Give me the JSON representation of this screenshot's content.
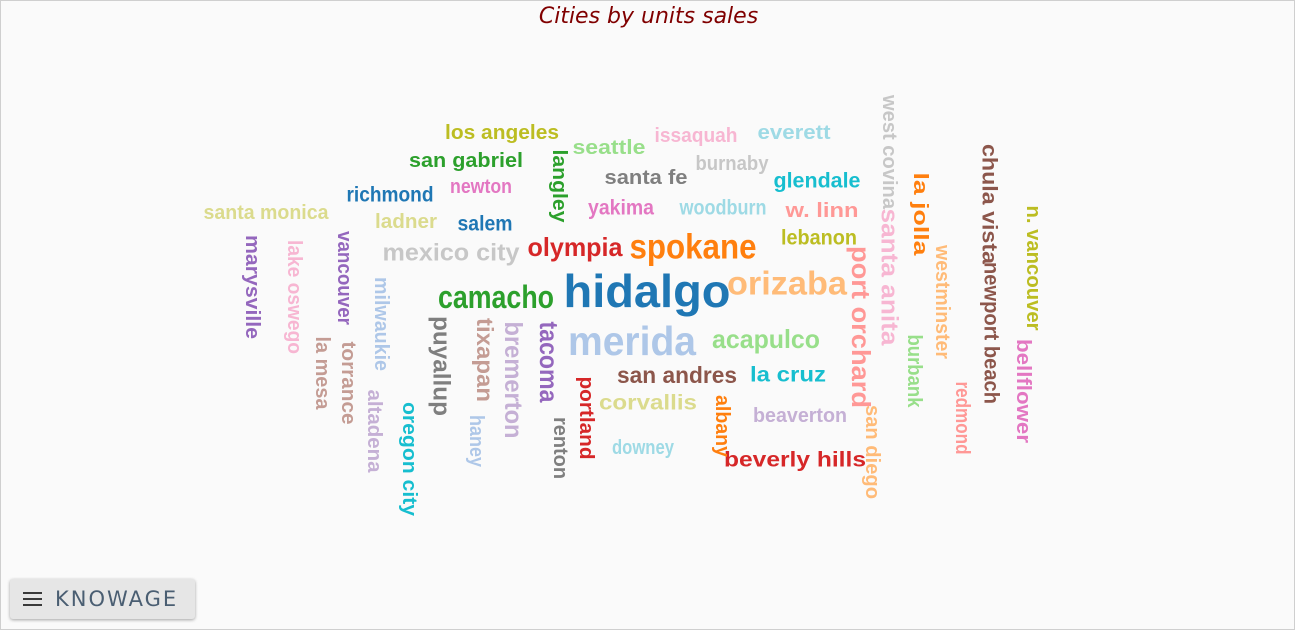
{
  "chart_data": {
    "type": "wordcloud",
    "title": "Cities by units sales",
    "words": [
      {
        "text": "hidalgo",
        "color": "#1f77b4",
        "rotate": false,
        "weight": 1.0
      },
      {
        "text": "merida",
        "color": "#aec7e8",
        "rotate": false,
        "weight": 0.9
      },
      {
        "text": "spokane",
        "color": "#ff7f0e",
        "rotate": false,
        "weight": 0.76
      },
      {
        "text": "orizaba",
        "color": "#ffbb78",
        "rotate": false,
        "weight": 0.72
      },
      {
        "text": "camacho",
        "color": "#2ca02c",
        "rotate": false,
        "weight": 0.7
      },
      {
        "text": "port orchard",
        "color": "#ff9896",
        "rotate": true,
        "weight": 0.58
      },
      {
        "text": "acapulco",
        "color": "#98df8a",
        "rotate": false,
        "weight": 0.58
      },
      {
        "text": "tacoma",
        "color": "#9467bd",
        "rotate": true,
        "weight": 0.58
      },
      {
        "text": "olympia",
        "color": "#d62728",
        "rotate": false,
        "weight": 0.58
      },
      {
        "text": "bremerton",
        "color": "#c5b0d5",
        "rotate": true,
        "weight": 0.56
      },
      {
        "text": "mexico city",
        "color": "#c7c7c7",
        "rotate": false,
        "weight": 0.54
      },
      {
        "text": "santa anita",
        "color": "#f7b6d2",
        "rotate": true,
        "weight": 0.54
      },
      {
        "text": "puyallup",
        "color": "#7f7f7f",
        "rotate": true,
        "weight": 0.53
      },
      {
        "text": "tixapan",
        "color": "#c49c94",
        "rotate": true,
        "weight": 0.52
      },
      {
        "text": "san andres",
        "color": "#8c564b",
        "rotate": false,
        "weight": 0.52
      },
      {
        "text": "la cruz",
        "color": "#17becf",
        "rotate": false,
        "weight": 0.5
      },
      {
        "text": "corvallis",
        "color": "#dbdb8d",
        "rotate": false,
        "weight": 0.5
      },
      {
        "text": "lebanon",
        "color": "#bcbd22",
        "rotate": false,
        "weight": 0.5
      },
      {
        "text": "yakima",
        "color": "#e377c2",
        "rotate": false,
        "weight": 0.5
      },
      {
        "text": "woodburn",
        "color": "#9edae5",
        "rotate": false,
        "weight": 0.5
      },
      {
        "text": "salem",
        "color": "#1f77b4",
        "rotate": false,
        "weight": 0.5
      },
      {
        "text": "richmond",
        "color": "#1f77b4",
        "rotate": false,
        "weight": 0.48
      },
      {
        "text": "glendale",
        "color": "#17becf",
        "rotate": false,
        "weight": 0.47
      },
      {
        "text": "beverly hills",
        "color": "#d62728",
        "rotate": false,
        "weight": 0.47
      },
      {
        "text": "newport beach",
        "color": "#8c564b",
        "rotate": true,
        "weight": 0.47
      },
      {
        "text": "chula vista",
        "color": "#8c564b",
        "rotate": true,
        "weight": 0.47
      },
      {
        "text": "vancouver",
        "color": "#9467bd",
        "rotate": true,
        "weight": 0.46
      },
      {
        "text": "marysville",
        "color": "#9467bd",
        "rotate": true,
        "weight": 0.46
      },
      {
        "text": "lake oswego",
        "color": "#f7b6d2",
        "rotate": true,
        "weight": 0.46
      },
      {
        "text": "milwaukie",
        "color": "#aec7e8",
        "rotate": true,
        "weight": 0.46
      },
      {
        "text": "torrance",
        "color": "#c49c94",
        "rotate": true,
        "weight": 0.46
      },
      {
        "text": "la mesa",
        "color": "#c49c94",
        "rotate": true,
        "weight": 0.46
      },
      {
        "text": "altadena",
        "color": "#c5b0d5",
        "rotate": true,
        "weight": 0.46
      },
      {
        "text": "oregon city",
        "color": "#17becf",
        "rotate": true,
        "weight": 0.46
      },
      {
        "text": "haney",
        "color": "#aec7e8",
        "rotate": true,
        "weight": 0.46
      },
      {
        "text": "renton",
        "color": "#7f7f7f",
        "rotate": true,
        "weight": 0.46
      },
      {
        "text": "portland",
        "color": "#d62728",
        "rotate": true,
        "weight": 0.46
      },
      {
        "text": "albany",
        "color": "#ff7f0e",
        "rotate": true,
        "weight": 0.46
      },
      {
        "text": "downey",
        "color": "#9edae5",
        "rotate": false,
        "weight": 0.46
      },
      {
        "text": "beaverton",
        "color": "#c5b0d5",
        "rotate": false,
        "weight": 0.46
      },
      {
        "text": "san diego",
        "color": "#ffbb78",
        "rotate": true,
        "weight": 0.46
      },
      {
        "text": "burbank",
        "color": "#98df8a",
        "rotate": true,
        "weight": 0.46
      },
      {
        "text": "redmond",
        "color": "#ff9896",
        "rotate": true,
        "weight": 0.46
      },
      {
        "text": "bellflower",
        "color": "#e377c2",
        "rotate": true,
        "weight": 0.46
      },
      {
        "text": "westminster",
        "color": "#ffbb78",
        "rotate": true,
        "weight": 0.46
      },
      {
        "text": "n. vancouver",
        "color": "#bcbd22",
        "rotate": true,
        "weight": 0.46
      },
      {
        "text": "la jolla",
        "color": "#ff7f0e",
        "rotate": true,
        "weight": 0.46
      },
      {
        "text": "west covina",
        "color": "#c7c7c7",
        "rotate": true,
        "weight": 0.46
      },
      {
        "text": "w. linn",
        "color": "#ff9896",
        "rotate": false,
        "weight": 0.46
      },
      {
        "text": "everett",
        "color": "#9edae5",
        "rotate": false,
        "weight": 0.46
      },
      {
        "text": "issaquah",
        "color": "#f7b6d2",
        "rotate": false,
        "weight": 0.46
      },
      {
        "text": "burnaby",
        "color": "#c7c7c7",
        "rotate": false,
        "weight": 0.46
      },
      {
        "text": "santa fe",
        "color": "#7f7f7f",
        "rotate": false,
        "weight": 0.46
      },
      {
        "text": "seattle",
        "color": "#98df8a",
        "rotate": false,
        "weight": 0.46
      },
      {
        "text": "langley",
        "color": "#2ca02c",
        "rotate": true,
        "weight": 0.46
      },
      {
        "text": "los angeles",
        "color": "#bcbd22",
        "rotate": false,
        "weight": 0.46
      },
      {
        "text": "san gabriel",
        "color": "#2ca02c",
        "rotate": false,
        "weight": 0.46
      },
      {
        "text": "newton",
        "color": "#e377c2",
        "rotate": false,
        "weight": 0.46
      },
      {
        "text": "ladner",
        "color": "#dbdb8d",
        "rotate": false,
        "weight": 0.46
      },
      {
        "text": "santa monica",
        "color": "#dbdb8d",
        "rotate": false,
        "weight": 0.46
      }
    ]
  },
  "brand": {
    "name": "KNOWAGE",
    "menu_icon": "hamburger-menu-icon"
  }
}
